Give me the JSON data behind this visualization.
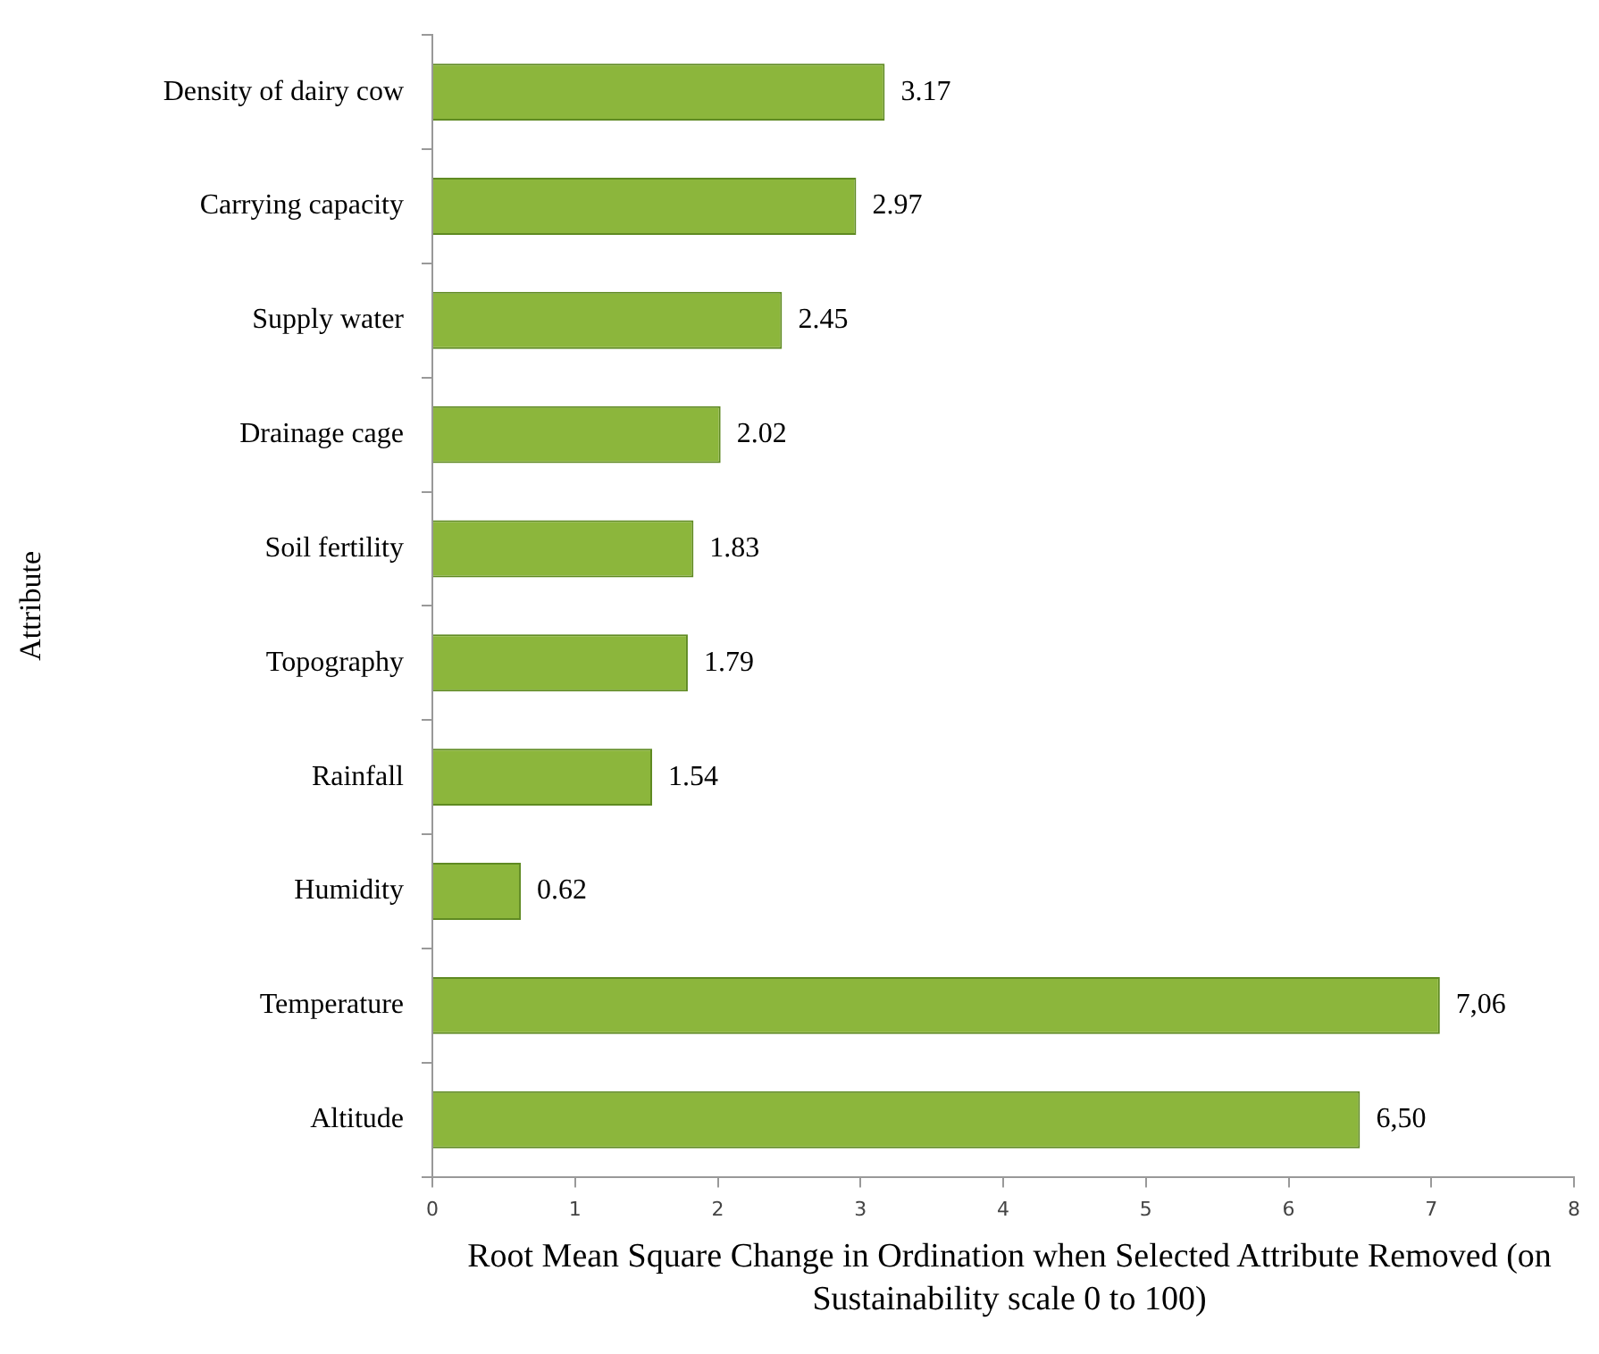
{
  "chart_data": {
    "type": "bar",
    "orientation": "horizontal",
    "xlabel": "Root Mean Square Change in Ordination when Selected Attribute Removed (on Sustainability scale 0 to 100)",
    "ylabel": "Attribute",
    "categories": [
      "Density of dairy cow",
      "Carrying capacity",
      "Supply water",
      "Drainage cage",
      "Soil fertility",
      "Topography",
      "Rainfall",
      "Humidity",
      "Temperature",
      "Altitude"
    ],
    "values": [
      3.17,
      2.97,
      2.45,
      2.02,
      1.83,
      1.79,
      1.54,
      0.62,
      7.06,
      6.5
    ],
    "value_labels": [
      "3.17",
      "2.97",
      "2.45",
      "2.02",
      "1.83",
      "1.79",
      "1.54",
      "0.62",
      "7,06",
      "6,50"
    ],
    "color": "#8cb63c",
    "xlim": [
      0,
      8
    ],
    "xticks": [
      0,
      1,
      2,
      3,
      4,
      5,
      6,
      7,
      8
    ],
    "grid": false,
    "legend": false
  }
}
